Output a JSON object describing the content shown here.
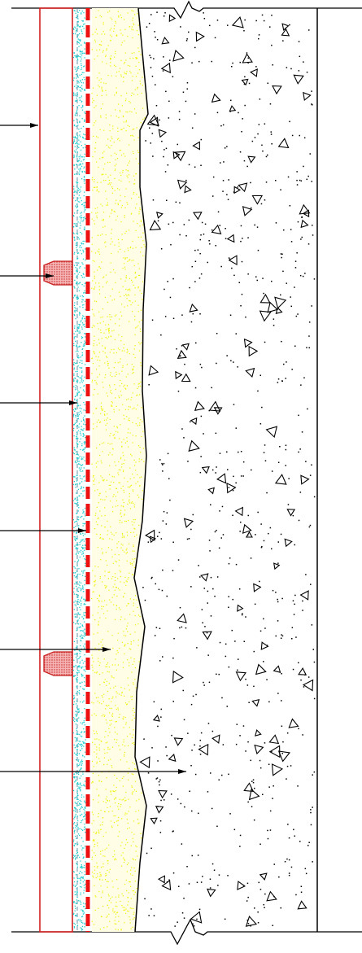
{
  "drawing": {
    "kind": "wall section detail",
    "layers": [
      {
        "name": "facing-panel",
        "color": "#d42020"
      },
      {
        "name": "insulation-membrane",
        "color": "#22cccc"
      },
      {
        "name": "waterproof-membrane",
        "color": "#ee1111"
      },
      {
        "name": "render-base",
        "color": "#f2f200"
      },
      {
        "name": "concrete-wall",
        "color": "#000000"
      }
    ],
    "leader_count": 6,
    "annotations": []
  }
}
